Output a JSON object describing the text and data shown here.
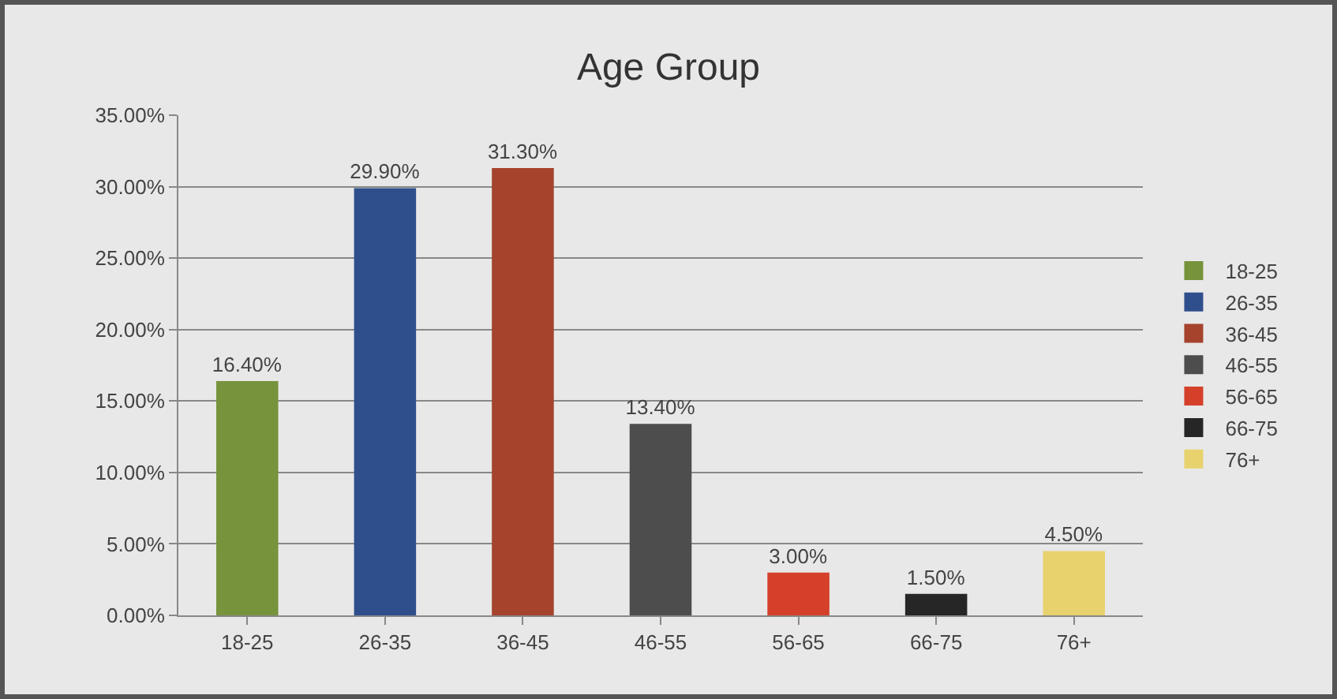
{
  "chart_data": {
    "type": "bar",
    "title": "Age Group",
    "categories": [
      "18-25",
      "26-35",
      "36-45",
      "46-55",
      "56-65",
      "66-75",
      "76+"
    ],
    "series": [
      {
        "name": "18-25",
        "color": "#77933c",
        "values": [
          16.4,
          null,
          null,
          null,
          null,
          null,
          null
        ],
        "value_labels": [
          "16.40%",
          null,
          null,
          null,
          null,
          null,
          null
        ]
      },
      {
        "name": "26-35",
        "color": "#2f4f8c",
        "values": [
          null,
          29.9,
          null,
          null,
          null,
          null,
          null
        ],
        "value_labels": [
          null,
          "29.90%",
          null,
          null,
          null,
          null,
          null
        ]
      },
      {
        "name": "36-45",
        "color": "#a5432c",
        "values": [
          null,
          null,
          31.3,
          null,
          null,
          null,
          null
        ],
        "value_labels": [
          null,
          null,
          "31.30%",
          null,
          null,
          null,
          null
        ]
      },
      {
        "name": "46-55",
        "color": "#4d4d4d",
        "values": [
          null,
          null,
          null,
          13.4,
          null,
          null,
          null
        ],
        "value_labels": [
          null,
          null,
          null,
          "13.40%",
          null,
          null,
          null
        ]
      },
      {
        "name": "56-65",
        "color": "#d5402b",
        "values": [
          null,
          null,
          null,
          null,
          3.0,
          null,
          null
        ],
        "value_labels": [
          null,
          null,
          null,
          null,
          "3.00%",
          null,
          null
        ]
      },
      {
        "name": "66-75",
        "color": "#262626",
        "values": [
          null,
          null,
          null,
          null,
          null,
          1.5,
          null
        ],
        "value_labels": [
          null,
          null,
          null,
          null,
          null,
          "1.50%",
          null
        ]
      },
      {
        "name": "76+",
        "color": "#e8d26e",
        "values": [
          null,
          null,
          null,
          null,
          null,
          null,
          4.5
        ],
        "value_labels": [
          null,
          null,
          null,
          null,
          null,
          null,
          "4.50%"
        ]
      }
    ],
    "ylim": [
      0,
      35
    ],
    "yticks": [
      {
        "value": 0,
        "label": "0.00%"
      },
      {
        "value": 5,
        "label": "5.00%"
      },
      {
        "value": 10,
        "label": "10.00%"
      },
      {
        "value": 15,
        "label": "15.00%"
      },
      {
        "value": 20,
        "label": "20.00%"
      },
      {
        "value": 25,
        "label": "25.00%"
      },
      {
        "value": 30,
        "label": "30.00%"
      },
      {
        "value": 35,
        "label": "35.00%"
      }
    ],
    "grid": "y",
    "legend": "right"
  }
}
